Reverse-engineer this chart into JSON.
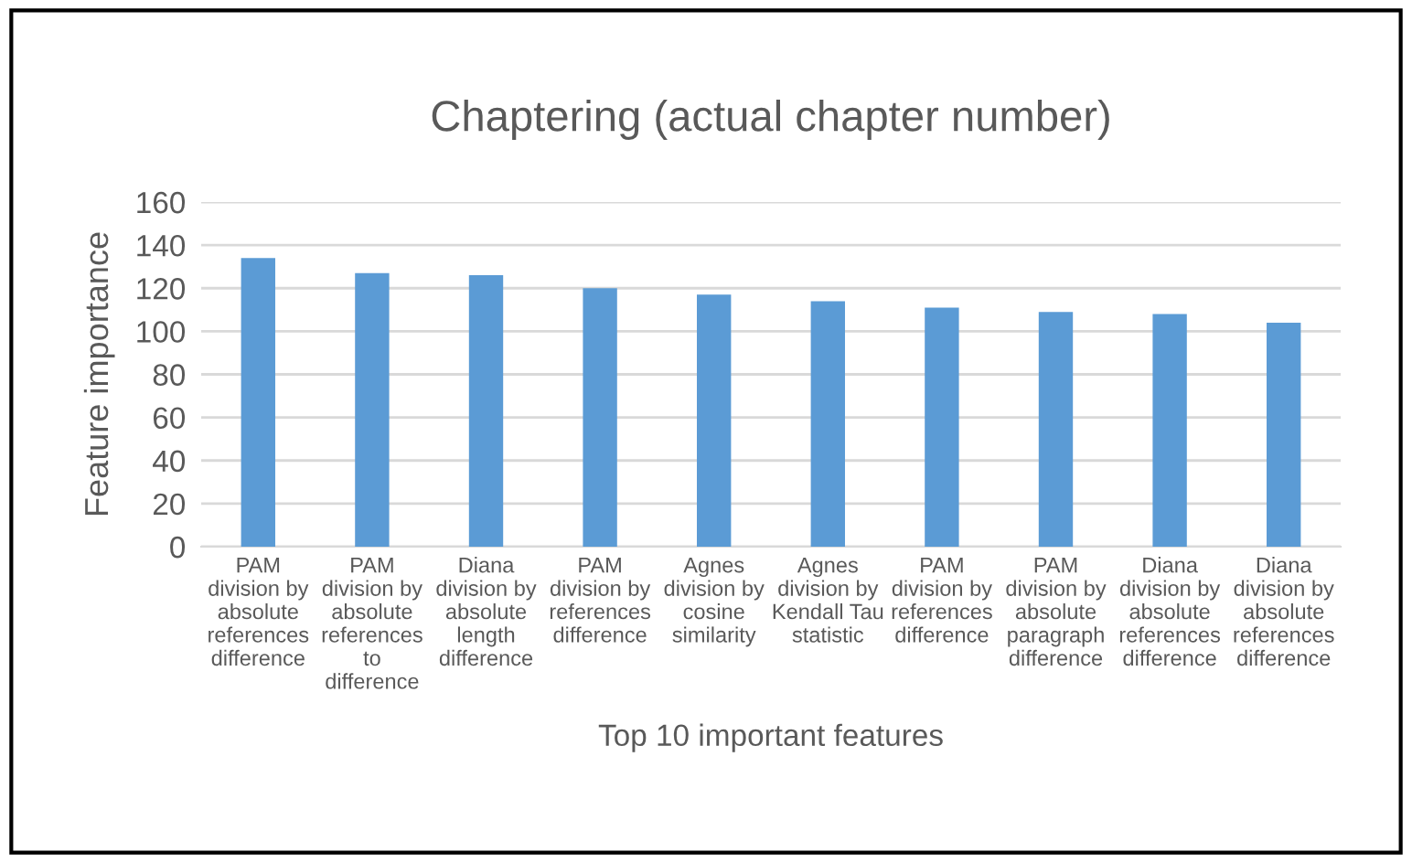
{
  "chart_data": {
    "type": "bar",
    "title": "Chaptering (actual chapter number)",
    "xlabel": "Top 10 important features",
    "ylabel": "Feature importance",
    "categories": [
      "PAM\ndivision by\nabsolute\nreferences\ndifference",
      "PAM\ndivision by\nabsolute\nreferences\nto\ndifference",
      "Diana\ndivision by\nabsolute\nlength\ndifference",
      "PAM\ndivision by\nreferences\ndifference",
      "Agnes\ndivision by\ncosine\nsimilarity",
      "Agnes\ndivision by\nKendall Tau\nstatistic",
      "PAM\ndivision by\nreferences\ndifference",
      "PAM\ndivision by\nabsolute\nparagraph\ndifference",
      "Diana\ndivision by\nabsolute\nreferences\ndifference",
      "Diana\ndivision by\nabsolute\nreferences\ndifference"
    ],
    "values": [
      134,
      127,
      126,
      120,
      117,
      114,
      111,
      109,
      108,
      104
    ],
    "color": "#5b9bd5",
    "ylim": [
      0,
      160
    ],
    "yticks": [
      0,
      20,
      40,
      60,
      80,
      100,
      120,
      140,
      160
    ],
    "grid": "y",
    "legend": false
  }
}
